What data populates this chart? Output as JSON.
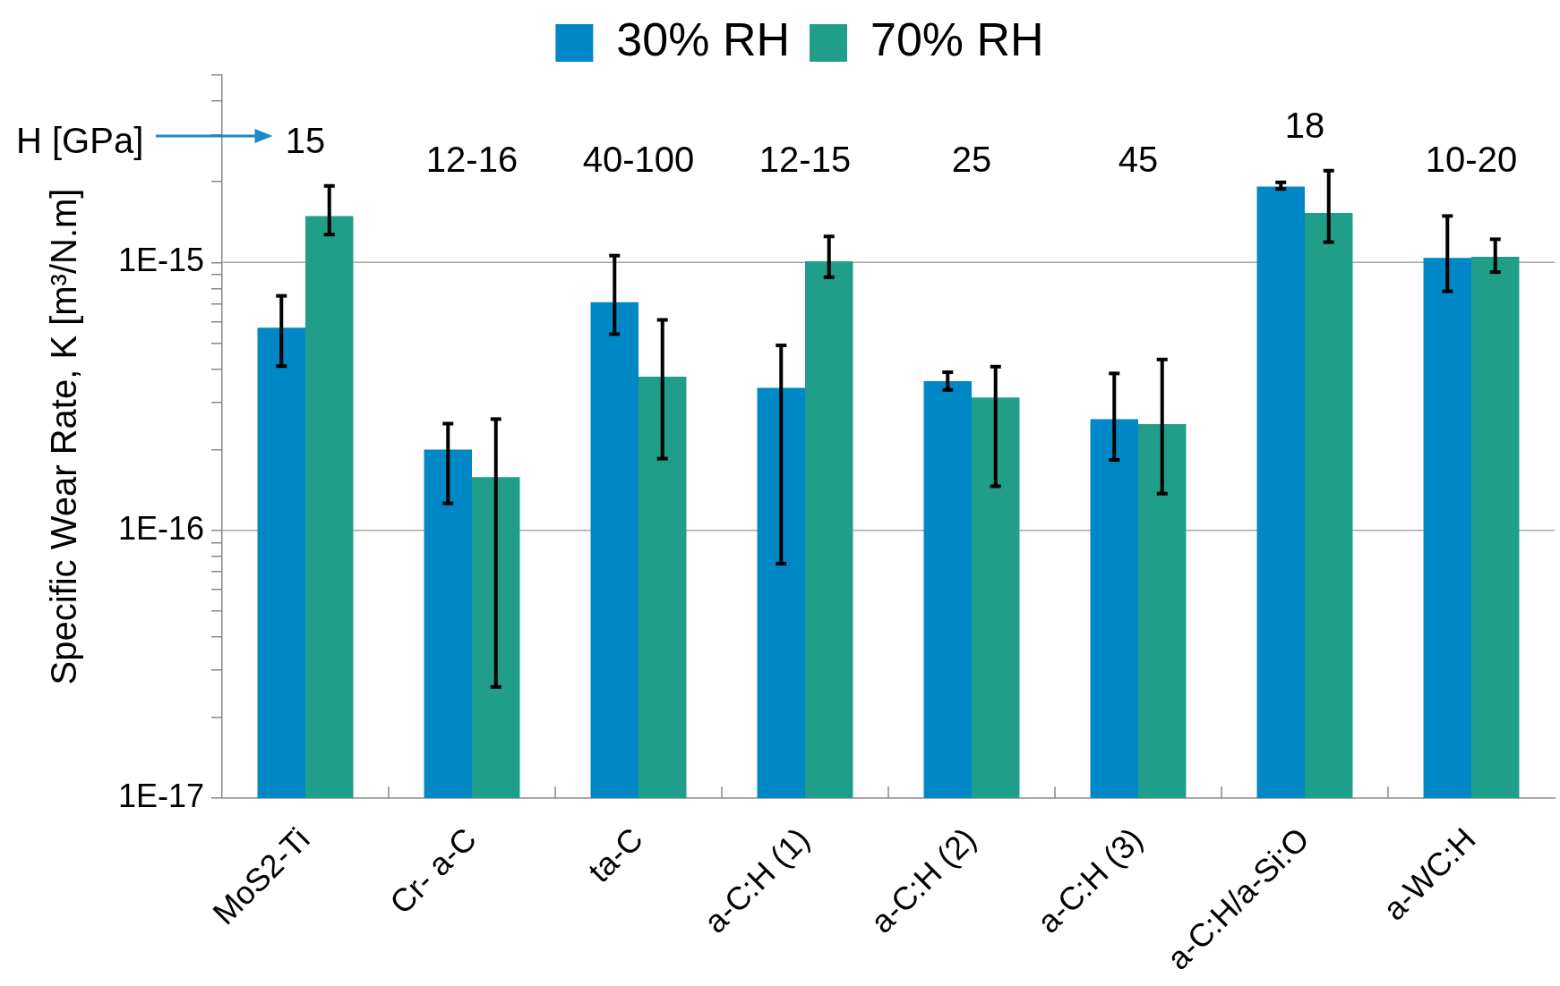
{
  "chart_data": {
    "type": "bar",
    "categories": [
      "MoS2-Ti",
      "Cr- a-C",
      "ta-C",
      "a-C:H (1)",
      "a-C:H (2)",
      "a-C:H (3)",
      "a-C:H/a-Si:O",
      "a-WC:H"
    ],
    "series": [
      {
        "name": "30% RH",
        "color": "#0088c6",
        "values": [
          5.7e-16,
          2e-16,
          7.1e-16,
          3.4e-16,
          3.6e-16,
          2.6e-16,
          1.92e-15,
          1.04e-15
        ],
        "errors": [
          [
            4.1e-16,
            7.5e-16
          ],
          [
            1.26e-16,
            2.5e-16
          ],
          [
            5.4e-16,
            1.06e-15
          ],
          [
            7.5e-17,
            4.9e-16
          ],
          [
            3.34e-16,
            3.89e-16
          ],
          [
            1.83e-16,
            3.85e-16
          ],
          [
            1.88e-15,
            1.99e-15
          ],
          [
            7.8e-16,
            1.49e-15
          ]
        ]
      },
      {
        "name": "70% RH",
        "color": "#209e8a",
        "values": [
          1.49e-15,
          1.58e-16,
          3.74e-16,
          1.01e-15,
          3.13e-16,
          2.49e-16,
          1.53e-15,
          1.05e-15
        ],
        "errors": [
          [
            1.27e-15,
            1.93e-15
          ],
          [
            2.6e-17,
            2.6e-16
          ],
          [
            1.85e-16,
            6.1e-16
          ],
          [
            8.8e-16,
            1.25e-15
          ],
          [
            1.46e-16,
            4.08e-16
          ],
          [
            1.37e-16,
            4.34e-16
          ],
          [
            1.19e-15,
            2.2e-15
          ],
          [
            9.2e-16,
            1.22e-15
          ]
        ]
      }
    ],
    "ylabel": "Specific Wear Rate, K [m³/N.m]",
    "log": true,
    "ylim": [
      1e-17,
      5e-15
    ],
    "yticks": [
      {
        "value": 1e-17,
        "label": "1E-17"
      },
      {
        "value": 2e-17,
        "label": null
      },
      {
        "value": 3e-17,
        "label": null
      },
      {
        "value": 4e-17,
        "label": null
      },
      {
        "value": 5e-17,
        "label": null
      },
      {
        "value": 6e-17,
        "label": null
      },
      {
        "value": 7e-17,
        "label": null
      },
      {
        "value": 8e-17,
        "label": null
      },
      {
        "value": 9e-17,
        "label": null
      },
      {
        "value": 1e-16,
        "label": "1E-16"
      },
      {
        "value": 2e-16,
        "label": null
      },
      {
        "value": 3e-16,
        "label": null
      },
      {
        "value": 4e-16,
        "label": null
      },
      {
        "value": 5e-16,
        "label": null
      },
      {
        "value": 6e-16,
        "label": null
      },
      {
        "value": 7e-16,
        "label": null
      },
      {
        "value": 8e-16,
        "label": null
      },
      {
        "value": 9e-16,
        "label": null
      },
      {
        "value": 1e-15,
        "label": "1E-15"
      },
      {
        "value": 2e-15,
        "label": null
      },
      {
        "value": 3e-15,
        "label": null
      },
      {
        "value": 4e-15,
        "label": null
      },
      {
        "value": 5e-15,
        "label": null
      }
    ],
    "grid": "y",
    "legend": "top",
    "annotations": [
      "H [GPa]",
      "15",
      "12-16",
      "40-100",
      "12-15",
      "25",
      "45",
      "18",
      "10-20"
    ]
  }
}
